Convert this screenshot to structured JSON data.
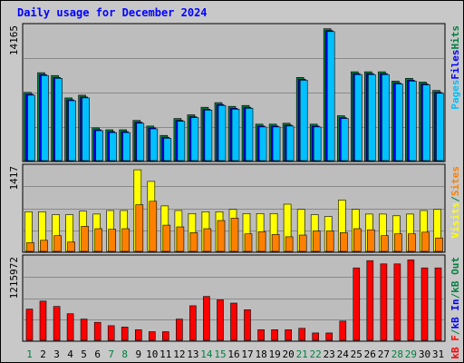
{
  "page": {
    "title": "Daily usage for December 2024"
  },
  "chart_data": [
    {
      "type": "bar",
      "panel": "hits-files-pages",
      "ymax_label": "14165",
      "categories": [
        "1",
        "2",
        "3",
        "4",
        "5",
        "6",
        "7",
        "8",
        "9",
        "10",
        "11",
        "12",
        "13",
        "14",
        "15",
        "16",
        "17",
        "18",
        "19",
        "20",
        "21",
        "22",
        "23",
        "24",
        "25",
        "26",
        "27",
        "28",
        "29",
        "30",
        "31"
      ],
      "weekend_days": [
        "1",
        "7",
        "8",
        "14",
        "15",
        "21",
        "22",
        "28",
        "29"
      ],
      "ylim": [
        0,
        14165
      ],
      "series": [
        {
          "name": "Hits",
          "color": "#008040",
          "values": [
            7300,
            9400,
            9100,
            6700,
            7000,
            3500,
            3300,
            3300,
            4300,
            3700,
            2700,
            4500,
            4900,
            5700,
            6200,
            5800,
            5900,
            3900,
            3900,
            4000,
            8900,
            3900,
            14100,
            4800,
            9500,
            9500,
            9500,
            8500,
            8800,
            8400,
            7500
          ]
        },
        {
          "name": "Files",
          "color": "#0000ff",
          "values": [
            7100,
            9200,
            8900,
            6500,
            6800,
            3300,
            3100,
            3100,
            4100,
            3500,
            2500,
            4300,
            4700,
            5500,
            6000,
            5600,
            5700,
            3700,
            3700,
            3800,
            8700,
            3700,
            13900,
            4600,
            9300,
            9300,
            9300,
            8300,
            8600,
            8200,
            7300
          ]
        },
        {
          "name": "Pages",
          "color": "#00c0ff",
          "values": [
            7000,
            9100,
            8800,
            6400,
            6700,
            3200,
            3000,
            3000,
            4000,
            3400,
            2400,
            4200,
            4600,
            5400,
            5900,
            5500,
            5600,
            3600,
            3600,
            3700,
            8600,
            3600,
            13800,
            4500,
            9200,
            9200,
            9200,
            8200,
            8500,
            8100,
            7200
          ]
        }
      ],
      "legend": [
        {
          "label": "Pages",
          "color": "#00c0ff"
        },
        {
          "label": "Files",
          "color": "#0000ff"
        },
        {
          "label": "Hits",
          "color": "#008040"
        }
      ]
    },
    {
      "type": "bar",
      "panel": "visits-sites",
      "ymax_label": "1417",
      "categories": [
        "1",
        "2",
        "3",
        "4",
        "5",
        "6",
        "7",
        "8",
        "9",
        "10",
        "11",
        "12",
        "13",
        "14",
        "15",
        "16",
        "17",
        "18",
        "19",
        "20",
        "21",
        "22",
        "23",
        "24",
        "25",
        "26",
        "27",
        "28",
        "29",
        "30",
        "31"
      ],
      "ylim": [
        0,
        1417
      ],
      "series": [
        {
          "name": "Visits",
          "color": "#ffff00",
          "values": [
            680,
            680,
            630,
            630,
            690,
            640,
            700,
            700,
            1400,
            1200,
            780,
            700,
            650,
            680,
            680,
            720,
            650,
            650,
            650,
            810,
            720,
            630,
            600,
            880,
            720,
            640,
            640,
            610,
            640,
            700,
            720
          ]
        },
        {
          "name": "Sites",
          "color": "#ff8000",
          "values": [
            150,
            190,
            270,
            160,
            430,
            390,
            380,
            390,
            800,
            860,
            450,
            420,
            320,
            390,
            530,
            570,
            300,
            340,
            290,
            250,
            280,
            350,
            350,
            320,
            390,
            370,
            270,
            300,
            300,
            330,
            230
          ]
        }
      ],
      "legend": [
        {
          "label": "Visits",
          "color": "#ffff00"
        },
        {
          "label": "/",
          "color": "#008040"
        },
        {
          "label": "Sites",
          "color": "#ff8000"
        }
      ]
    },
    {
      "type": "bar",
      "panel": "kbytes",
      "ymax_label": "1215972",
      "categories": [
        "1",
        "2",
        "3",
        "4",
        "5",
        "6",
        "7",
        "8",
        "9",
        "10",
        "11",
        "12",
        "13",
        "14",
        "15",
        "16",
        "17",
        "18",
        "19",
        "20",
        "21",
        "22",
        "23",
        "24",
        "25",
        "26",
        "27",
        "28",
        "29",
        "30",
        "31"
      ],
      "ylim": [
        0,
        1215972
      ],
      "series": [
        {
          "name": "KBytes F",
          "color": "#ff0000",
          "values": [
            470000,
            590000,
            510000,
            400000,
            320000,
            270000,
            220000,
            200000,
            160000,
            130000,
            130000,
            320000,
            520000,
            660000,
            610000,
            560000,
            460000,
            160000,
            160000,
            160000,
            180000,
            110000,
            110000,
            290000,
            1090000,
            1200000,
            1150000,
            1150000,
            1210000,
            1090000,
            1090000
          ]
        }
      ],
      "legend": [
        {
          "label": "kB F",
          "color": "#ff0000"
        },
        {
          "label": "/",
          "color": "#008040"
        },
        {
          "label": "kB In",
          "color": "#0000ff"
        },
        {
          "label": "/",
          "color": "#008040"
        },
        {
          "label": "kB Out",
          "color": "#008040"
        }
      ]
    }
  ]
}
